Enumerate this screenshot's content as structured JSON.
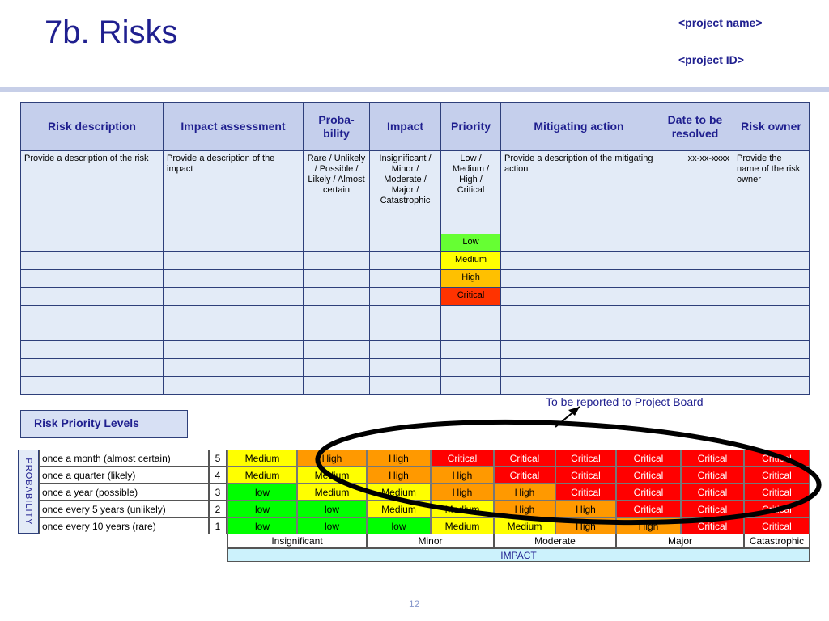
{
  "slide": {
    "title": "7b. Risks",
    "project_name": "<project name>",
    "project_id": "<project ID>",
    "page_number": "12"
  },
  "risk_table": {
    "headers": [
      "Risk description",
      "Impact assessment",
      "Proba-\nbility",
      "Impact",
      "Priority",
      "Mitigating action",
      "Date to be resolved",
      "Risk owner"
    ],
    "description_row": [
      "Provide a description of the risk",
      "Provide a description of the impact",
      "Rare / Unlikely / Possible / Likely / Almost certain",
      "Insignificant / Minor / Moderate / Major / Catastrophic",
      "Low / Medium / High / Critical",
      "Provide a description of the mitigating action",
      "xx-xx-xxxx",
      "Provide the name of the risk owner"
    ],
    "priority_examples": [
      "Low",
      "Medium",
      "High",
      "Critical"
    ],
    "priority_colors": {
      "Low": "#66ff33",
      "Medium": "#ffff00",
      "High": "#ffc000",
      "Critical": "#ff3300"
    },
    "empty_rows_after_examples": 5
  },
  "report_note": "To be reported to Project Board",
  "priority_levels": {
    "title": "Risk Priority Levels",
    "probability_axis": "PROBABILITY",
    "impact_axis": "IMPACT",
    "rows": [
      {
        "label": "once a month (almost certain)",
        "score": "5",
        "cells": [
          "Medium",
          "High",
          "High",
          "Critical",
          "Critical",
          "Critical",
          "Critical",
          "Critical",
          "Critical"
        ]
      },
      {
        "label": "once a quarter (likely)",
        "score": "4",
        "cells": [
          "Medium",
          "Medium",
          "High",
          "High",
          "Critical",
          "Critical",
          "Critical",
          "Critical",
          "Critical"
        ]
      },
      {
        "label": "once a year (possible)",
        "score": "3",
        "cells": [
          "low",
          "Medium",
          "Medium",
          "High",
          "High",
          "Critical",
          "Critical",
          "Critical",
          "Critical"
        ]
      },
      {
        "label": "once every 5 years (unlikely)",
        "score": "2",
        "cells": [
          "low",
          "low",
          "Medium",
          "Medium",
          "High",
          "High",
          "Critical",
          "Critical",
          "Critical"
        ]
      },
      {
        "label": "once every 10 years (rare)",
        "score": "1",
        "cells": [
          "low",
          "low",
          "low",
          "Medium",
          "Medium",
          "High",
          "High",
          "Critical",
          "Critical"
        ]
      }
    ],
    "impact_labels": [
      "Insignificant",
      "Minor",
      "Moderate",
      "Major",
      "Catastrophic"
    ]
  }
}
